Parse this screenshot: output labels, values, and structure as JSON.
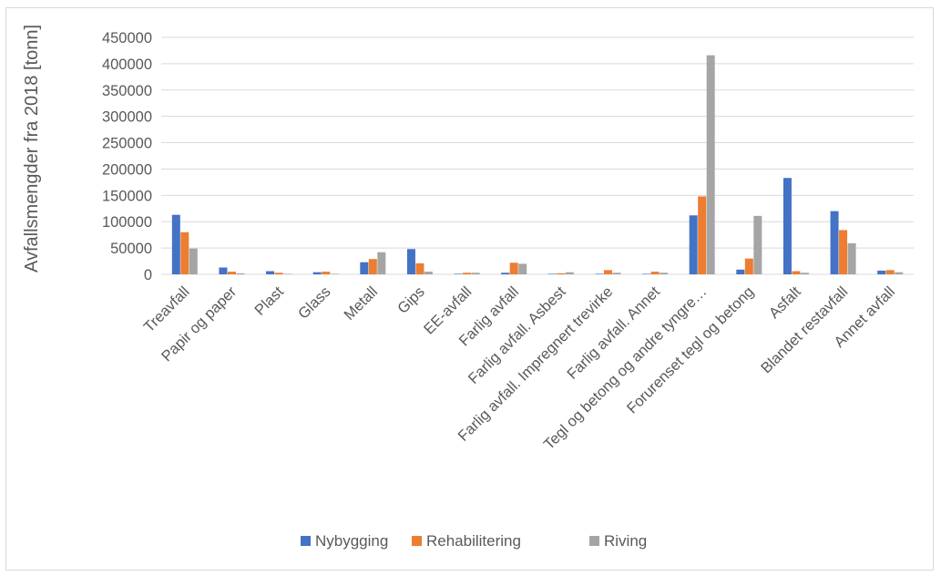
{
  "chart_data": {
    "type": "bar",
    "ylabel": "Avfallsmengder fra 2018 [tonn]",
    "ylim": [
      0,
      450000
    ],
    "yticks": [
      0,
      50000,
      100000,
      150000,
      200000,
      250000,
      300000,
      350000,
      400000,
      450000
    ],
    "ytick_labels": [
      "0",
      "50000",
      "100000",
      "150000",
      "200000",
      "250000",
      "300000",
      "350000",
      "400000",
      "450000"
    ],
    "grid": true,
    "legend_position": "bottom",
    "categories": [
      "Treavfall",
      "Papir og paper",
      "Plast",
      "Glass",
      "Metall",
      "Gips",
      "EE-avfall",
      "Farlig avfall",
      "Farlig avfall. Asbest",
      "Farlig avfall. Impregnert trevirke",
      "Farlig avfall. Annet",
      "Tegl og betong og andre tyngre…",
      "Forurenset tegl og betong",
      "Asfalt",
      "Blandet restavfall",
      "Annet avfall"
    ],
    "series": [
      {
        "name": "Nybygging",
        "color": "#4472C4",
        "values": [
          113000,
          13000,
          6000,
          4000,
          23000,
          48000,
          1000,
          3000,
          1000,
          1000,
          1000,
          112000,
          9000,
          183000,
          120000,
          7000
        ]
      },
      {
        "name": "Rehabilitering",
        "color": "#ED7D31",
        "values": [
          80000,
          5000,
          3000,
          5000,
          29000,
          21000,
          3000,
          22000,
          2000,
          8000,
          5000,
          148000,
          30000,
          6000,
          84000,
          8000
        ]
      },
      {
        "name": "Riving",
        "color": "#A5A5A5",
        "values": [
          49000,
          2000,
          1000,
          1000,
          42000,
          5000,
          3000,
          20000,
          4000,
          3000,
          3000,
          416000,
          111000,
          3000,
          59000,
          4000
        ]
      }
    ]
  }
}
